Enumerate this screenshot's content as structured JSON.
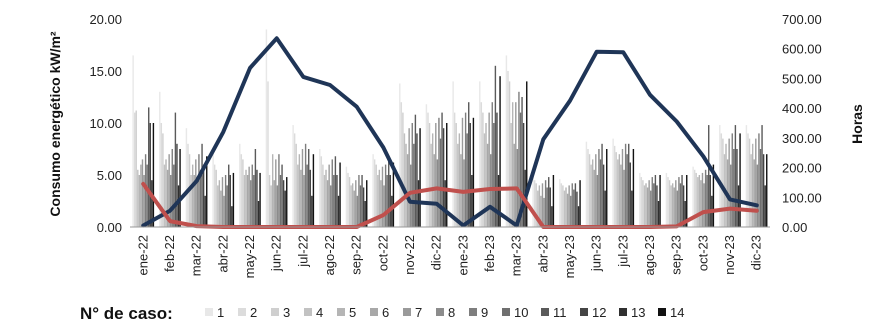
{
  "chart_data": {
    "type": "bar",
    "categories": [
      "ene-22",
      "feb-22",
      "mar-22",
      "abr-22",
      "may-22",
      "jun-22",
      "jul-22",
      "ago-22",
      "sep-22",
      "oct-22",
      "nov-22",
      "dic-22",
      "ene-23",
      "feb-23",
      "mar-23",
      "abr-23",
      "may-23",
      "jun-23",
      "jul-23",
      "ago-23",
      "sep-23",
      "oct-23",
      "nov-23",
      "dic-23"
    ],
    "ylabel": "Consumo energético kW/m²",
    "y2label": "Horas",
    "ylim": [
      0,
      20
    ],
    "y2lim": [
      0,
      700
    ],
    "yticks": [
      "0.00",
      "5.00",
      "10.00",
      "15.00",
      "20.00"
    ],
    "y2ticks": [
      "0.00",
      "100.00",
      "200.00",
      "300.00",
      "400.00",
      "500.00",
      "600.00",
      "700.00"
    ],
    "legend_title": "N° de caso:",
    "legend_position": "bottom",
    "bar_series": [
      {
        "name": "1",
        "color": "#e8e8e8",
        "values": [
          16.5,
          13,
          9.5,
          7,
          8,
          19,
          9.8,
          7.5,
          5.8,
          7,
          13.8,
          11.8,
          14,
          14,
          16.5,
          5,
          4.6,
          8.2,
          8.5,
          5.2,
          5.2,
          5.8,
          9.8,
          9.8
        ]
      },
      {
        "name": "2",
        "color": "#dcdcdc",
        "values": [
          11,
          10,
          8,
          6,
          7,
          14,
          9,
          6.8,
          5.2,
          6.5,
          12,
          11,
          11,
          12,
          15,
          4.5,
          4.2,
          7.5,
          7.8,
          4.8,
          4.8,
          5.5,
          9,
          9
        ]
      },
      {
        "name": "3",
        "color": "#cfcfcf",
        "values": [
          11.2,
          9,
          7,
          5.5,
          6.5,
          5,
          8,
          6,
          4.8,
          6,
          11,
          10,
          10,
          11,
          14,
          4.2,
          4,
          7,
          7.2,
          4.5,
          4.5,
          5.2,
          8.5,
          8.5
        ]
      },
      {
        "name": "4",
        "color": "#c2c2c2",
        "values": [
          5.5,
          6,
          5,
          4,
          5,
          4,
          6,
          5,
          4,
          5,
          9,
          8,
          8,
          9,
          10,
          3.5,
          3.5,
          6,
          6.5,
          4,
          4,
          4.8,
          7,
          7
        ]
      },
      {
        "name": "5",
        "color": "#b5b5b5",
        "values": [
          5,
          6.5,
          6,
          4.5,
          5.5,
          7,
          7,
          5.5,
          4.2,
          5.5,
          8,
          9,
          9,
          10,
          12,
          4,
          3.8,
          6.5,
          7,
          4.2,
          4.2,
          5,
          8,
          8
        ]
      },
      {
        "name": "6",
        "color": "#a8a8a8",
        "values": [
          6,
          5.5,
          5,
          3.5,
          5,
          4.5,
          5.5,
          4.5,
          3.5,
          4.5,
          7,
          7,
          7,
          8,
          8,
          3,
          3.2,
          5.5,
          6,
          3.8,
          3.8,
          4.5,
          6.5,
          6.5
        ]
      },
      {
        "name": "7",
        "color": "#9a9a9a",
        "values": [
          6.5,
          7,
          6.5,
          4.8,
          5.8,
          6.5,
          7.5,
          6,
          4.5,
          5.8,
          9.5,
          10,
          10.5,
          11,
          12,
          4.2,
          4,
          7,
          7.5,
          4.5,
          4.5,
          5.2,
          8.5,
          8.5
        ]
      },
      {
        "name": "8",
        "color": "#8c8c8c",
        "values": [
          5,
          5,
          4.5,
          3,
          4.5,
          4,
          5,
          4,
          3,
          4,
          6,
          6.5,
          6.5,
          7,
          7.5,
          2.8,
          3,
          5,
          5.5,
          3.5,
          3.5,
          4.2,
          6,
          6
        ]
      },
      {
        "name": "9",
        "color": "#7e7e7e",
        "values": [
          7,
          7.5,
          7,
          5,
          6,
          7,
          8,
          6.5,
          5,
          6,
          10,
          10.5,
          11,
          12,
          13,
          4.5,
          4.2,
          7.5,
          8,
          4.8,
          4.8,
          5.5,
          9,
          9
        ]
      },
      {
        "name": "10",
        "color": "#6f6f6f",
        "values": [
          6,
          6,
          5.5,
          4,
          5,
          5,
          6,
          5,
          4,
          5,
          8,
          8.5,
          9,
          10,
          11,
          3.8,
          3.6,
          6.5,
          7,
          4.2,
          4.2,
          5,
          7.5,
          7.5
        ]
      },
      {
        "name": "11",
        "color": "#5a5a5a",
        "values": [
          11.5,
          11,
          8,
          6,
          7.5,
          6,
          7.5,
          6.8,
          5,
          6.5,
          10.8,
          11,
          12,
          15.5,
          12.5,
          4.8,
          4.2,
          8,
          8,
          5,
          5,
          9.8,
          9.8,
          9.8
        ]
      },
      {
        "name": "12",
        "color": "#454545",
        "values": [
          10,
          8,
          6,
          5,
          5.5,
          4.5,
          5.5,
          5,
          3.8,
          5,
          9,
          9.5,
          10,
          11,
          10,
          3.8,
          3.4,
          6,
          6.2,
          4,
          4,
          5,
          7.5,
          7
        ]
      },
      {
        "name": "13",
        "color": "#303030",
        "values": [
          4.5,
          4,
          3,
          2,
          2.5,
          3.5,
          3,
          3,
          2.5,
          3,
          4.5,
          4.5,
          5,
          5,
          5.5,
          2,
          2,
          3.5,
          3.5,
          2.5,
          2.5,
          3,
          4,
          4
        ]
      },
      {
        "name": "14",
        "color": "#111111",
        "values": [
          10,
          7.5,
          6.8,
          5.2,
          5.2,
          4.8,
          7,
          6.2,
          4.5,
          6.2,
          9.5,
          10,
          10.5,
          14.5,
          14,
          5,
          4.5,
          7.5,
          7.5,
          5,
          5,
          6,
          9,
          7
        ]
      }
    ],
    "line_series": [
      {
        "color": "#1f3557",
        "axis": "y2",
        "values": [
          5,
          55,
          155,
          320,
          535,
          635,
          505,
          478,
          405,
          268,
          85,
          78,
          5,
          68,
          5,
          295,
          425,
          590,
          588,
          445,
          355,
          238,
          93,
          73
        ]
      },
      {
        "color": "#c0504d",
        "axis": "y2",
        "values": [
          145,
          20,
          3,
          0,
          0,
          0,
          0,
          0,
          0,
          40,
          115,
          130,
          118,
          128,
          130,
          0,
          0,
          0,
          0,
          0,
          2,
          50,
          62,
          55
        ]
      }
    ]
  }
}
